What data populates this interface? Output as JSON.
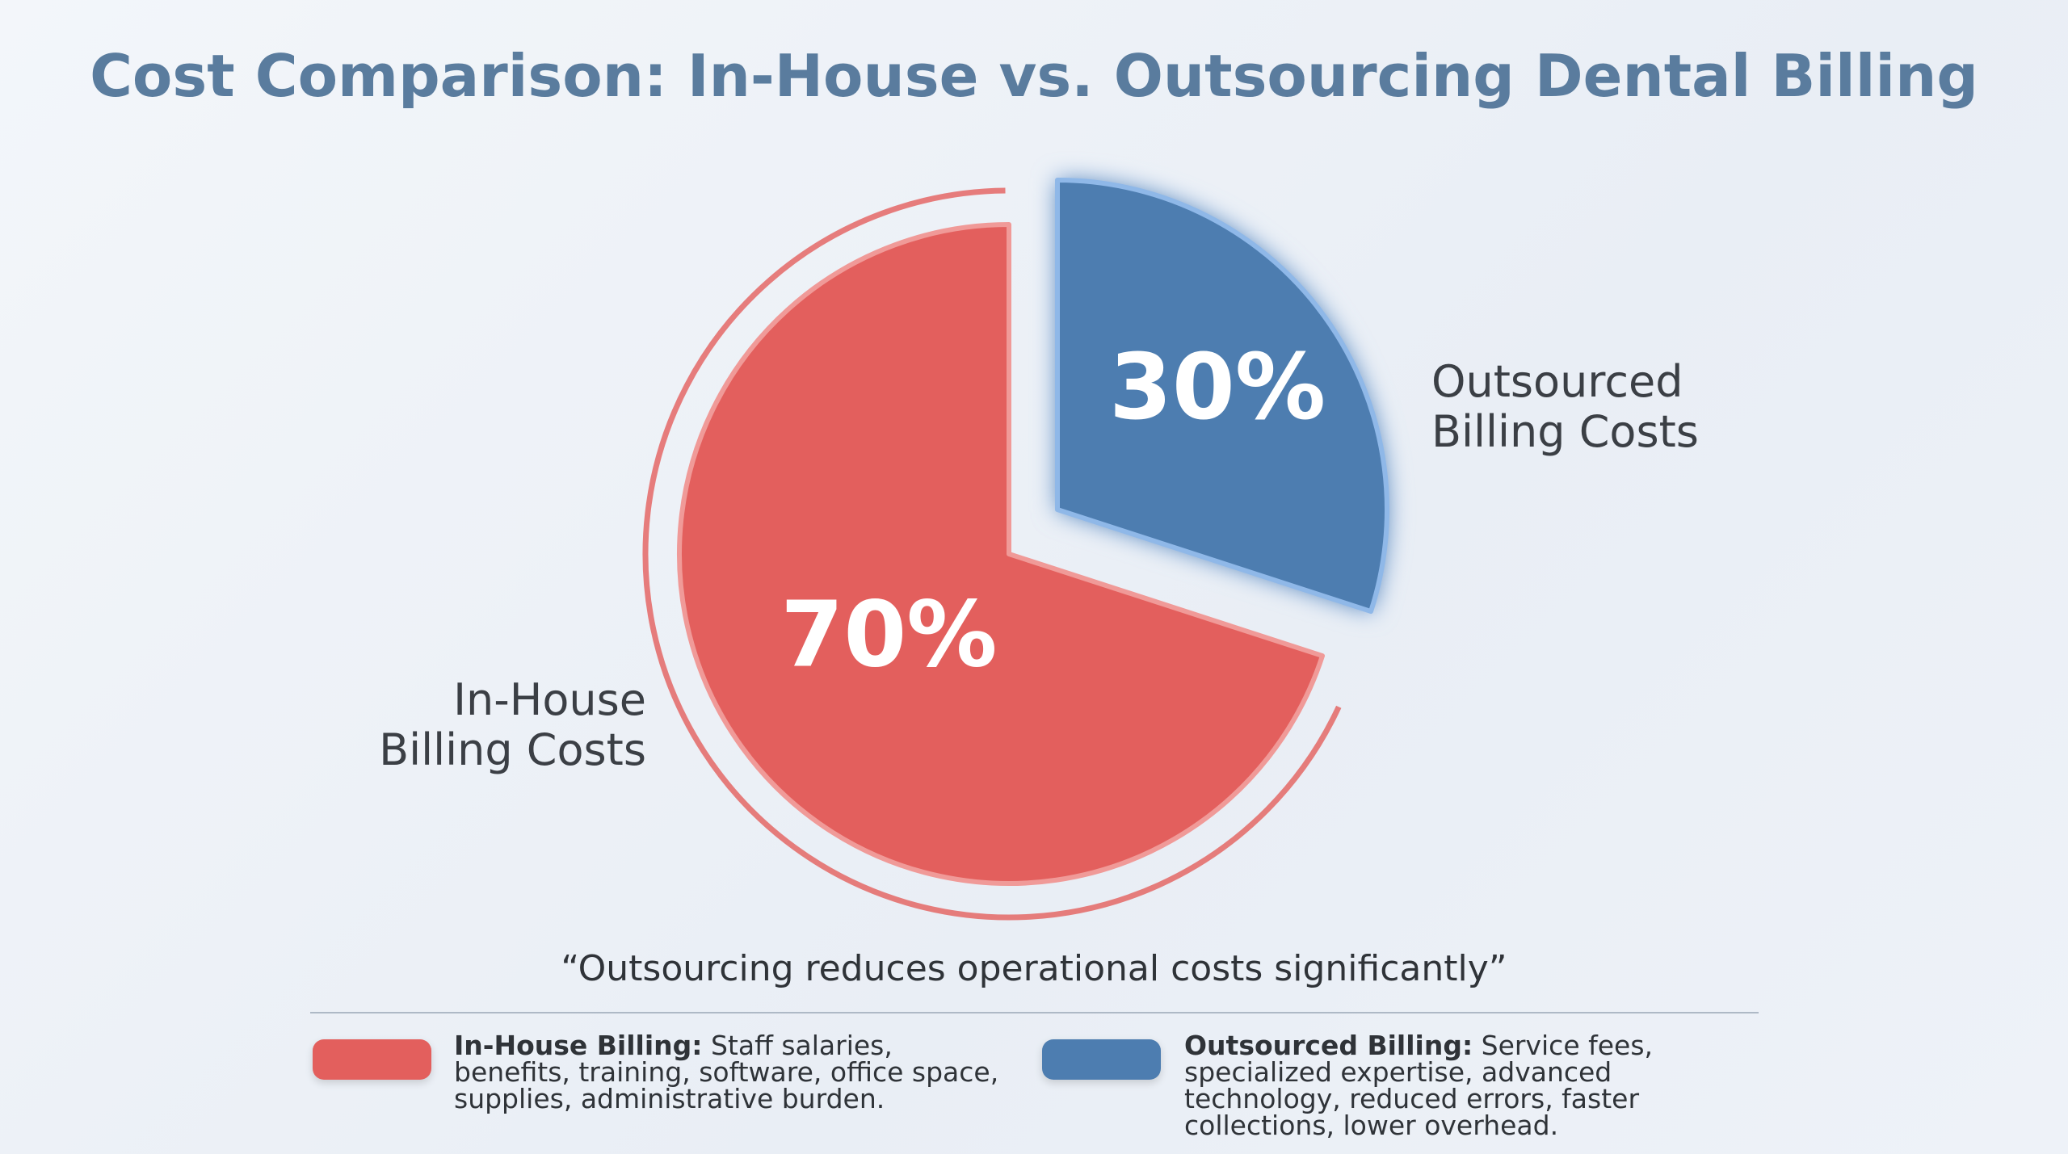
{
  "chart_data": {
    "type": "pie",
    "title": "Cost Comparison: In-House vs. Outsourcing Dental Billing",
    "categories": [
      "In-House Billing Costs",
      "Outsourced Billing Costs"
    ],
    "values": [
      70,
      30
    ],
    "value_labels": [
      "70%",
      "30%"
    ],
    "colors": [
      "#e35f5d",
      "#4d7db0"
    ],
    "caption": "“Outsourcing reduces operational costs significantly”",
    "legend": [
      {
        "label": "In-House Billing:",
        "text": "Staff salaries, benefits, training, software, office space, supplies, administrative burden."
      },
      {
        "label": "Outsourced Billing:",
        "text": "Service fees, specialized expertise, advanced technology, reduced errors, faster collections, lower overhead."
      }
    ]
  }
}
